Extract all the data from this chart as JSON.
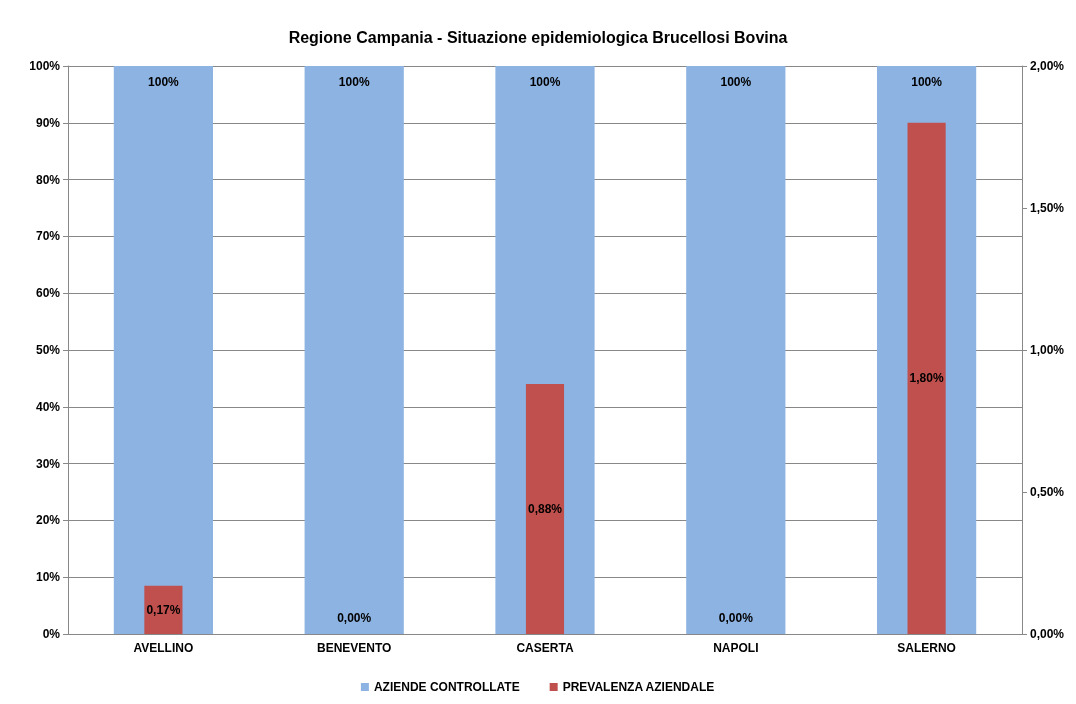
{
  "chart_data": {
    "type": "bar",
    "title": "Regione Campania - Situazione epidemiologica Brucellosi Bovina",
    "categories": [
      "AVELLINO",
      "BENEVENTO",
      "CASERTA",
      "NAPOLI",
      "SALERNO"
    ],
    "series": [
      {
        "name": "AZIENDE CONTROLLATE",
        "color": "#8db3e2",
        "values": [
          100,
          100,
          100,
          100,
          100
        ],
        "value_labels": [
          "100%",
          "100%",
          "100%",
          "100%",
          "100%"
        ]
      },
      {
        "name": "PREVALENZA AZIENDALE",
        "color": "#c0504d",
        "axis": "y2",
        "values": [
          0.17,
          0,
          0.88,
          0,
          1.8
        ],
        "value_labels": [
          "0,17%",
          "0,00%",
          "0,88%",
          "0,00%",
          "1,80%"
        ]
      }
    ],
    "ylim": [
      0,
      100
    ],
    "yticks": [
      {
        "value": 0,
        "label": "0%"
      },
      {
        "value": 10,
        "label": "10%"
      },
      {
        "value": 20,
        "label": "20%"
      },
      {
        "value": 30,
        "label": "30%"
      },
      {
        "value": 40,
        "label": "40%"
      },
      {
        "value": 50,
        "label": "50%"
      },
      {
        "value": 60,
        "label": "60%"
      },
      {
        "value": 70,
        "label": "70%"
      },
      {
        "value": 80,
        "label": "80%"
      },
      {
        "value": 90,
        "label": "90%"
      },
      {
        "value": 100,
        "label": "100%"
      }
    ],
    "y2lim": [
      0,
      2
    ],
    "y2ticks": [
      {
        "value": 0,
        "label": "0,00%"
      },
      {
        "value": 0.5,
        "label": "0,50%"
      },
      {
        "value": 1,
        "label": "1,00%"
      },
      {
        "value": 1.5,
        "label": "1,50%"
      },
      {
        "value": 2,
        "label": "2,00%"
      }
    ],
    "grid": "y",
    "legend": "bottom"
  }
}
